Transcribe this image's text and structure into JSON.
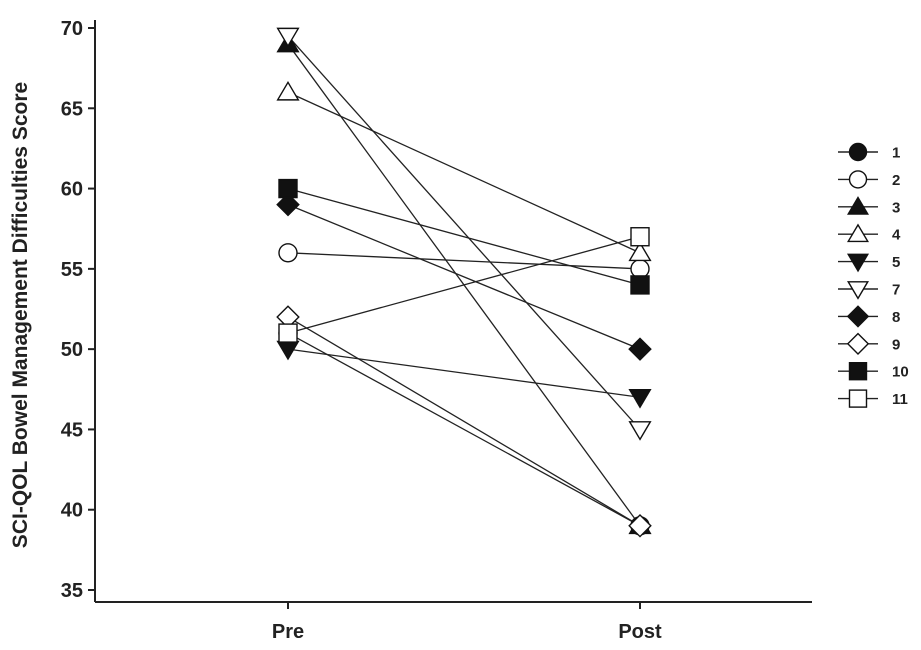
{
  "chart_data": {
    "type": "line",
    "ylabel": "SCI-QOL Bowel Management Difficulties Score",
    "xlabel": "",
    "categories": [
      "Pre",
      "Post"
    ],
    "ylim": [
      35,
      70
    ],
    "yticks": [
      35,
      40,
      45,
      50,
      55,
      60,
      65,
      70
    ],
    "grid": false,
    "legend_position": "right",
    "series": [
      {
        "name": "1",
        "marker": "circle",
        "filled": true,
        "values": [
          51,
          39
        ]
      },
      {
        "name": "2",
        "marker": "circle",
        "filled": false,
        "values": [
          56,
          55
        ]
      },
      {
        "name": "3",
        "marker": "triangle-up",
        "filled": true,
        "values": [
          69,
          39
        ]
      },
      {
        "name": "4",
        "marker": "triangle-up",
        "filled": false,
        "values": [
          66,
          56
        ]
      },
      {
        "name": "5",
        "marker": "triangle-down",
        "filled": true,
        "values": [
          50,
          47
        ]
      },
      {
        "name": "7",
        "marker": "triangle-down",
        "filled": false,
        "values": [
          69.5,
          45
        ]
      },
      {
        "name": "8",
        "marker": "diamond",
        "filled": true,
        "values": [
          59,
          50
        ]
      },
      {
        "name": "9",
        "marker": "diamond",
        "filled": false,
        "values": [
          52,
          39
        ]
      },
      {
        "name": "10",
        "marker": "square",
        "filled": true,
        "values": [
          60,
          54
        ]
      },
      {
        "name": "11",
        "marker": "square",
        "filled": false,
        "values": [
          51,
          57
        ]
      }
    ]
  }
}
